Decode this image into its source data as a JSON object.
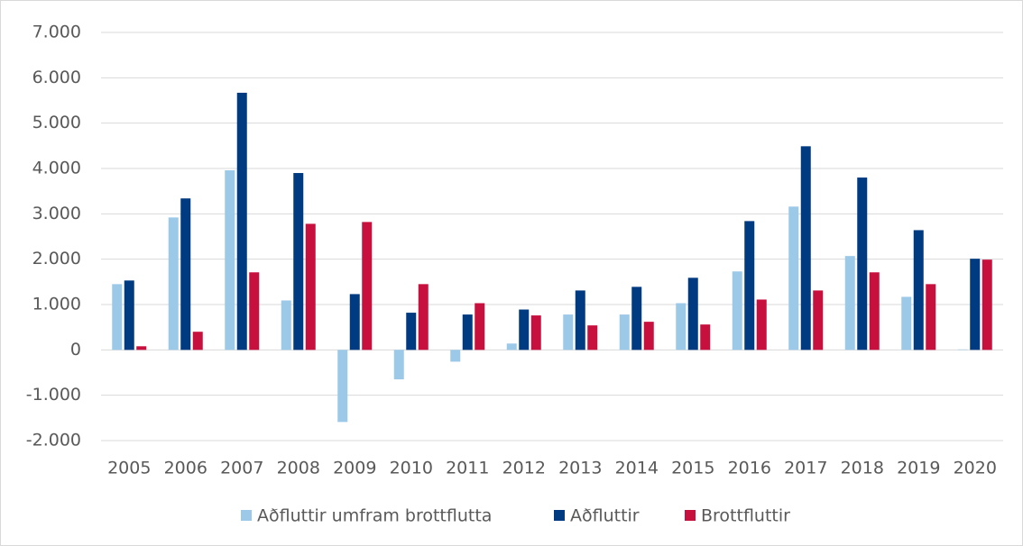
{
  "chart_data": {
    "type": "bar",
    "categories": [
      "2005",
      "2006",
      "2007",
      "2008",
      "2009",
      "2010",
      "2011",
      "2012",
      "2013",
      "2014",
      "2015",
      "2016",
      "2017",
      "2018",
      "2019",
      "2020"
    ],
    "series": [
      {
        "name": "Aðfluttir umfram brottflutta",
        "color": "#9dc9e9",
        "values": [
          1450,
          2920,
          3960,
          1090,
          -1590,
          -650,
          -260,
          140,
          780,
          780,
          1030,
          1730,
          3160,
          2070,
          1170,
          10
        ]
      },
      {
        "name": "Aðfluttir",
        "color": "#003a80",
        "values": [
          1530,
          3340,
          5670,
          3900,
          1230,
          820,
          780,
          890,
          1310,
          1390,
          1590,
          2840,
          4490,
          3800,
          2640,
          2010
        ]
      },
      {
        "name": "Brottfluttir",
        "color": "#c8103e",
        "values": [
          80,
          400,
          1710,
          2780,
          2820,
          1450,
          1030,
          760,
          540,
          620,
          560,
          1110,
          1310,
          1710,
          1450,
          1990
        ]
      }
    ],
    "ylim": [
      -2000,
      7000
    ],
    "yticks": [
      {
        "value": -2000,
        "label": "-2.000"
      },
      {
        "value": -1000,
        "label": "-1.000"
      },
      0,
      {
        "value": 1000,
        "label": "1.000"
      },
      {
        "value": 2000,
        "label": "2.000"
      },
      {
        "value": 3000,
        "label": "3.000"
      },
      {
        "value": 4000,
        "label": "4.000"
      },
      {
        "value": 5000,
        "label": "5.000"
      },
      {
        "value": 6000,
        "label": "6.000"
      },
      {
        "value": 7000,
        "label": "7.000"
      }
    ],
    "grid": true,
    "legend": "bottom"
  }
}
